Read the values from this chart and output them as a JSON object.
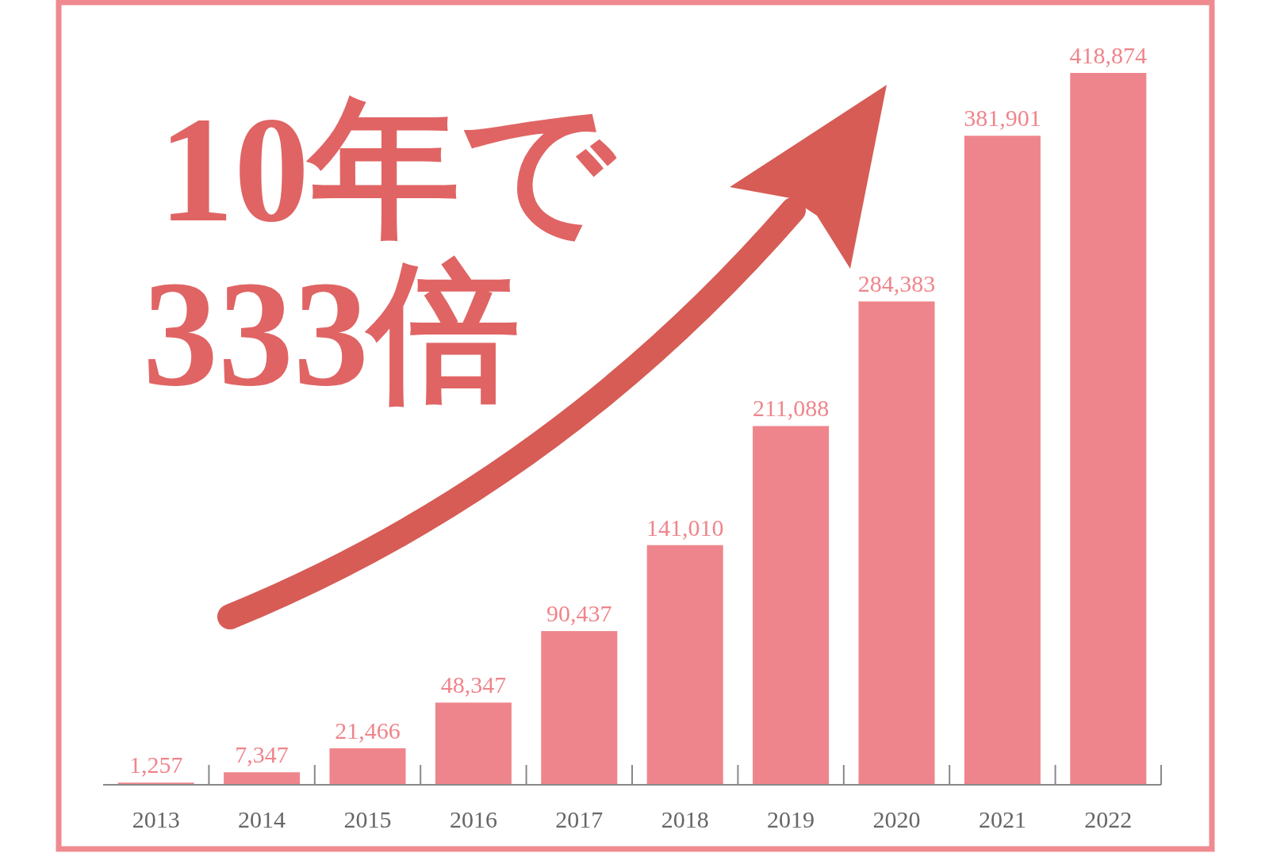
{
  "chart_data": {
    "type": "bar",
    "title": "10年で\n333倍",
    "categories": [
      "2013",
      "2014",
      "2015",
      "2016",
      "2017",
      "2018",
      "2019",
      "2020",
      "2021",
      "2022"
    ],
    "values": [
      1257,
      7347,
      21466,
      48347,
      90437,
      141010,
      211088,
      284383,
      381901,
      418874
    ],
    "value_labels": [
      "1,257",
      "7,347",
      "21,466",
      "48,347",
      "90,437",
      "141,010",
      "211,088",
      "284,383",
      "381,901",
      "418,874"
    ],
    "color": "#ef858c"
  }
}
